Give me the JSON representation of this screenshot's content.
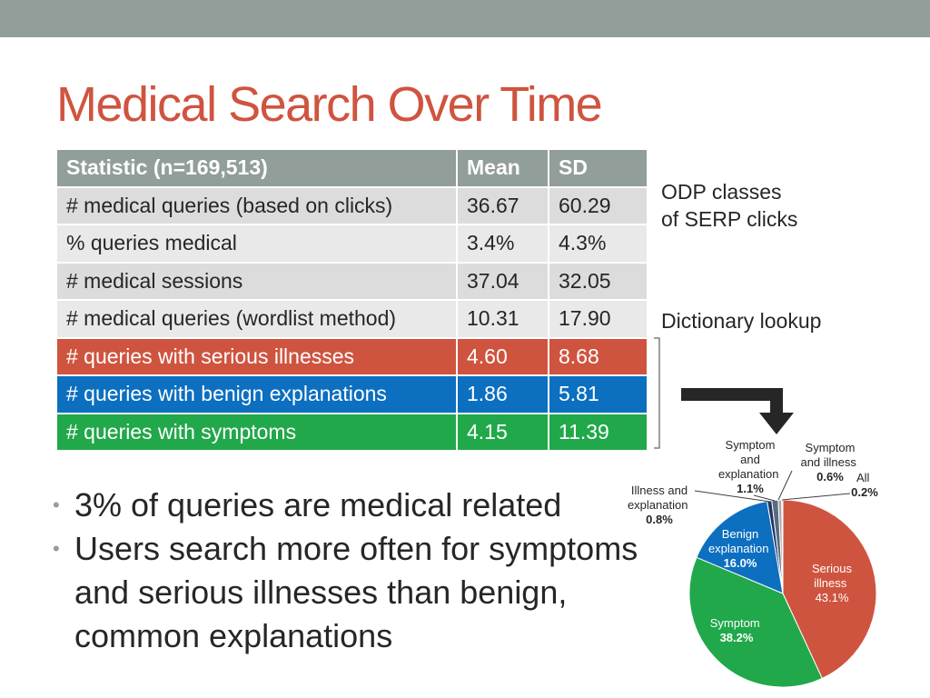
{
  "slide": {
    "title": "Medical Search Over Time",
    "odp_label_line1": "ODP classes",
    "odp_label_line2": "of SERP clicks",
    "dictionary_label": "Dictionary lookup"
  },
  "table": {
    "headers": [
      "Statistic (n=169,513)",
      "Mean",
      "SD"
    ],
    "rows": [
      [
        "# medical queries (based on clicks)",
        "36.67",
        "60.29"
      ],
      [
        "% queries medical",
        "3.4%",
        "4.3%"
      ],
      [
        "# medical sessions",
        "37.04",
        "32.05"
      ],
      [
        "# medical queries (wordlist method)",
        "10.31",
        "17.90"
      ],
      [
        "# queries with serious illnesses",
        "4.60",
        "8.68"
      ],
      [
        "# queries with benign explanations",
        "1.86",
        "5.81"
      ],
      [
        "# queries with symptoms",
        "4.15",
        "11.39"
      ]
    ]
  },
  "bullets": [
    "3% of queries are medical related",
    "Users search more often for symptoms and serious illnesses than benign, common explanations"
  ],
  "colors": {
    "serious": "#cf543f",
    "benign": "#0c6fc0",
    "symptom": "#21a84a",
    "header": "#929e99"
  },
  "chart_data": {
    "type": "pie",
    "slices": [
      {
        "label": "Serious illness",
        "value": 43.1,
        "display": "43.1%",
        "color": "#cf543f"
      },
      {
        "label": "Symptom",
        "value": 38.2,
        "display": "38.2%",
        "color": "#21a84a"
      },
      {
        "label": "Benign explanation",
        "value": 16.0,
        "display": "16.0%",
        "color": "#0c6fc0"
      },
      {
        "label": "Illness and explanation",
        "value": 0.8,
        "display": "0.8%",
        "color": "#1f3864"
      },
      {
        "label": "Symptom and explanation",
        "value": 1.1,
        "display": "1.1%",
        "color": "#5a6a80"
      },
      {
        "label": "Symptom and illness",
        "value": 0.6,
        "display": "0.6%",
        "color": "#a6a6a6"
      },
      {
        "label": "All",
        "value": 0.2,
        "display": "0.2%",
        "color": "#d9d9d9"
      }
    ]
  }
}
